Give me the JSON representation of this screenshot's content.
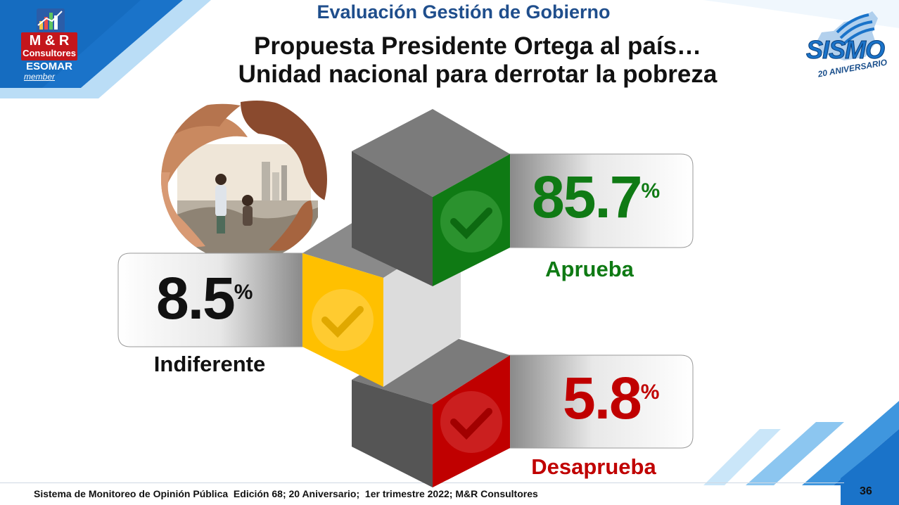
{
  "header": {
    "eval_title": "Evaluación Gestión de Gobierno",
    "title_line1": "Propuesta Presidente Ortega al país…",
    "title_line2": "Unidad nacional para derrotar la pobreza"
  },
  "logos": {
    "mr_line1": "M & R",
    "mr_line2": "Consultores",
    "esomar": "ESOMAR",
    "member": "member",
    "sismo": "SISMO",
    "aniversario": "20 ANIVERSARIO"
  },
  "results": {
    "aprueba": {
      "value": "85.7",
      "unit": "%",
      "label": "Aprueba",
      "color": "#0f7a14"
    },
    "indiferente": {
      "value": "8.5",
      "unit": "%",
      "label": "Indiferente",
      "color": "#111111"
    },
    "desaprueba": {
      "value": "5.8",
      "unit": "%",
      "label": "Desaprueba",
      "color": "#c00000"
    }
  },
  "icons": [
    "check-icon",
    "hands-illustration"
  ],
  "footer": {
    "text": "Sistema de Monitoreo de Opinión Pública  Edición 68; 20 Aniversario;  1er trimestre 2022; M&R Consultores",
    "page": "36"
  }
}
